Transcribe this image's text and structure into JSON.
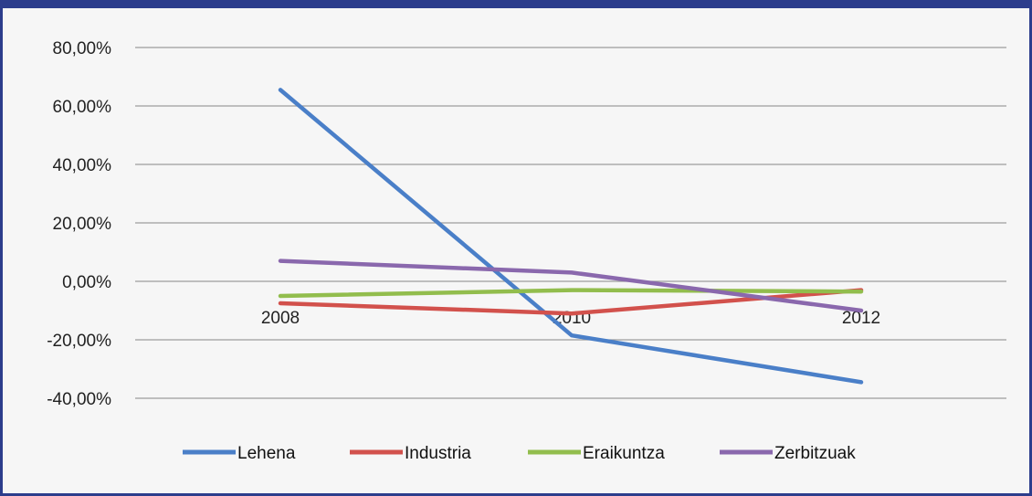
{
  "chart_data": {
    "type": "line",
    "categories": [
      "2008",
      "2010",
      "2012"
    ],
    "ylim": [
      -40,
      80
    ],
    "yticks": [
      80,
      60,
      40,
      20,
      0,
      -20,
      -40
    ],
    "ytick_labels": [
      "80,00%",
      "60,00%",
      "40,00%",
      "20,00%",
      "0,00%",
      "-20,00%",
      "-40,00%"
    ],
    "grid": true,
    "legend_position": "bottom",
    "series": [
      {
        "name": "Lehena",
        "color": "#4a7fc8",
        "values": [
          65.5,
          -18.5,
          -34.5
        ]
      },
      {
        "name": "Industria",
        "color": "#d2514c",
        "values": [
          -7.5,
          -11.0,
          -3.0
        ]
      },
      {
        "name": "Eraikuntza",
        "color": "#92bd4d",
        "values": [
          -5.0,
          -3.0,
          -3.5
        ]
      },
      {
        "name": "Zerbitzuak",
        "color": "#8a68ad",
        "values": [
          7.0,
          3.0,
          -10.0
        ]
      }
    ]
  }
}
